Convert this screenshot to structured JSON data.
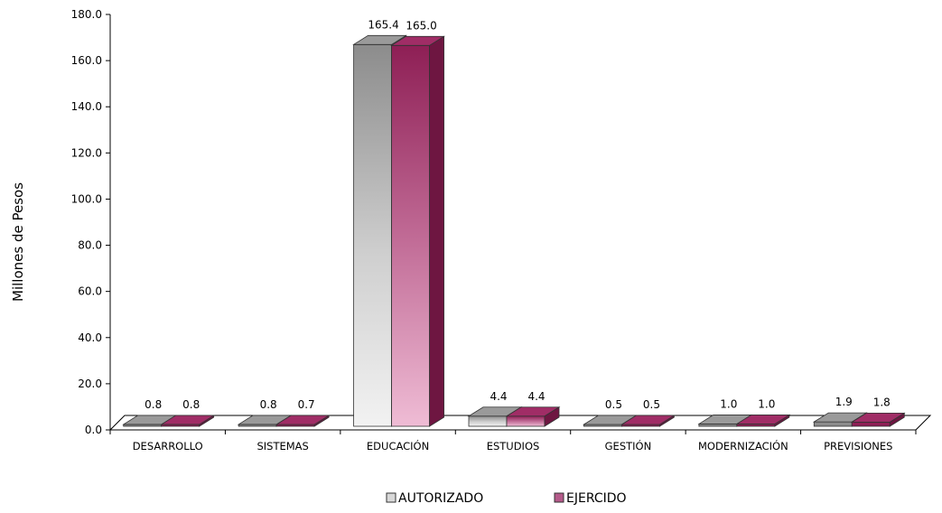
{
  "chart_data": {
    "type": "bar",
    "categories": [
      "DESARROLLO",
      "SISTEMAS",
      "EDUCACIÓN",
      "ESTUDIOS",
      "GESTIÓN",
      "MODERNIZACIÓN",
      "PREVISIONES"
    ],
    "series": [
      {
        "name": "AUTORIZADO",
        "values": [
          0.8,
          0.8,
          165.4,
          4.4,
          0.5,
          1.0,
          1.9
        ],
        "labels": [
          "0.8",
          "0.8",
          "165.4",
          "4.4",
          "0.5",
          "1.0",
          "1.9"
        ],
        "color": "#8c8c8c"
      },
      {
        "name": "EJERCIDO",
        "values": [
          0.8,
          0.7,
          165.0,
          4.4,
          0.5,
          1.0,
          1.8
        ],
        "labels": [
          "0.8",
          "0.7",
          "165.0",
          "4.4",
          "0.5",
          "1.0",
          "1.8"
        ],
        "color": "#8e1f55"
      }
    ],
    "ylabel": "Millones de Pesos",
    "ylim": [
      0,
      180
    ],
    "yticks": [
      "0.0",
      "20.0",
      "40.0",
      "60.0",
      "80.0",
      "100.0",
      "120.0",
      "140.0",
      "160.0",
      "180.0"
    ],
    "legend_position": "bottom",
    "grid": false,
    "style": "3d-clustered-column"
  }
}
